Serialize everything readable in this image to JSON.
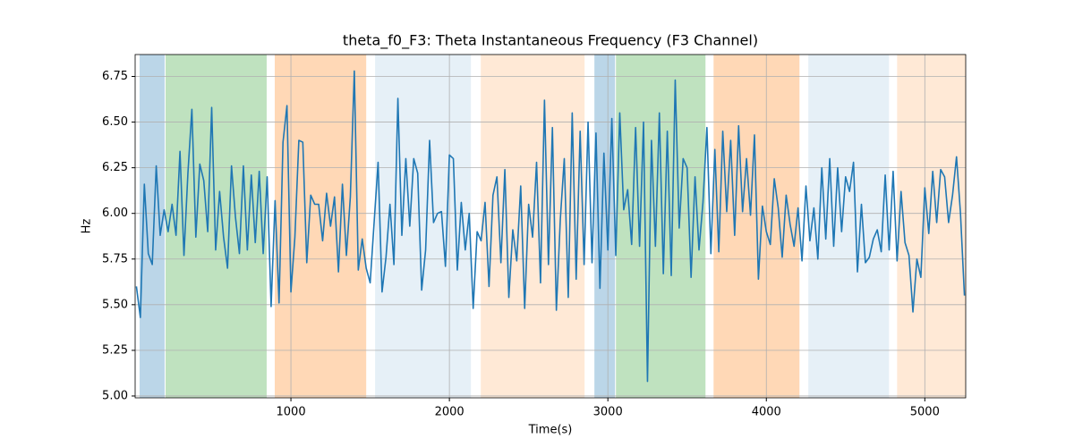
{
  "chart_data": {
    "type": "line",
    "title": "theta_f0_F3: Theta Instantaneous Frequency (F3 Channel)",
    "x_label": "Time(s)",
    "y_label": "Hz",
    "color": "#1f77b4",
    "grid": true,
    "xlim": [
      17,
      5258
    ],
    "ylim": [
      4.99,
      6.87
    ],
    "xticks": [
      1000,
      2000,
      3000,
      4000,
      5000
    ],
    "yticks": [
      {
        "value": 5,
        "label": "5.00"
      },
      5.25,
      {
        "value": 5.5,
        "label": "5.50"
      },
      5.75,
      {
        "value": 6,
        "label": "6.00"
      },
      6.25,
      {
        "value": 6.5,
        "label": "6.50"
      },
      6.75
    ],
    "spans": [
      {
        "start": 45,
        "end": 203,
        "color": "#1f77b4",
        "opacity": 0.3
      },
      {
        "start": 209,
        "end": 847,
        "color": "#2ca02c",
        "opacity": 0.3
      },
      {
        "start": 898,
        "end": 1475,
        "color": "#ff7f0e",
        "opacity": 0.3
      },
      {
        "start": 1531,
        "end": 2136,
        "color": "#1f77b4",
        "opacity": 0.11
      },
      {
        "start": 2198,
        "end": 2853,
        "color": "#ff7f0e",
        "opacity": 0.17
      },
      {
        "start": 2915,
        "end": 3045,
        "color": "#1f77b4",
        "opacity": 0.3
      },
      {
        "start": 3051,
        "end": 3616,
        "color": "#2ca02c",
        "opacity": 0.3
      },
      {
        "start": 3667,
        "end": 4209,
        "color": "#ff7f0e",
        "opacity": 0.3
      },
      {
        "start": 4265,
        "end": 4774,
        "color": "#1f77b4",
        "opacity": 0.11
      },
      {
        "start": 4825,
        "end": 5258,
        "color": "#ff7f0e",
        "opacity": 0.17
      }
    ],
    "x": [
      25,
      50,
      75,
      100,
      125,
      150,
      175,
      200,
      225,
      250,
      275,
      300,
      325,
      350,
      375,
      400,
      425,
      450,
      475,
      500,
      525,
      550,
      575,
      600,
      625,
      650,
      675,
      700,
      725,
      750,
      775,
      800,
      825,
      850,
      875,
      900,
      925,
      950,
      975,
      1000,
      1025,
      1050,
      1075,
      1100,
      1125,
      1150,
      1175,
      1200,
      1225,
      1250,
      1275,
      1300,
      1325,
      1350,
      1375,
      1400,
      1425,
      1450,
      1475,
      1500,
      1525,
      1550,
      1575,
      1600,
      1625,
      1650,
      1675,
      1700,
      1725,
      1750,
      1775,
      1800,
      1825,
      1850,
      1875,
      1900,
      1925,
      1950,
      1975,
      2000,
      2025,
      2050,
      2075,
      2100,
      2125,
      2150,
      2175,
      2200,
      2225,
      2250,
      2275,
      2300,
      2325,
      2350,
      2375,
      2400,
      2425,
      2450,
      2475,
      2500,
      2525,
      2550,
      2575,
      2600,
      2625,
      2650,
      2675,
      2700,
      2725,
      2750,
      2775,
      2800,
      2825,
      2850,
      2875,
      2900,
      2925,
      2950,
      2975,
      3000,
      3025,
      3050,
      3075,
      3100,
      3125,
      3150,
      3175,
      3200,
      3225,
      3250,
      3275,
      3300,
      3325,
      3350,
      3375,
      3400,
      3425,
      3450,
      3475,
      3500,
      3525,
      3550,
      3575,
      3600,
      3625,
      3650,
      3675,
      3700,
      3725,
      3750,
      3775,
      3800,
      3825,
      3850,
      3875,
      3900,
      3925,
      3950,
      3975,
      4000,
      4025,
      4050,
      4075,
      4100,
      4125,
      4150,
      4175,
      4200,
      4225,
      4250,
      4275,
      4300,
      4325,
      4350,
      4375,
      4400,
      4425,
      4450,
      4475,
      4500,
      4525,
      4550,
      4575,
      4600,
      4625,
      4650,
      4675,
      4700,
      4725,
      4750,
      4775,
      4800,
      4825,
      4850,
      4875,
      4900,
      4925,
      4950,
      4975,
      5000,
      5025,
      5050,
      5075,
      5100,
      5125,
      5150,
      5175,
      5200,
      5225,
      5250
    ],
    "values": [
      5.6,
      5.43,
      6.16,
      5.78,
      5.72,
      6.26,
      5.88,
      6.02,
      5.9,
      6.05,
      5.88,
      6.34,
      5.77,
      6.22,
      6.57,
      5.87,
      6.27,
      6.18,
      5.9,
      6.58,
      5.8,
      6.12,
      5.87,
      5.7,
      6.26,
      5.98,
      5.78,
      6.26,
      5.8,
      6.21,
      5.84,
      6.23,
      5.78,
      6.2,
      5.49,
      6.07,
      5.51,
      6.39,
      6.59,
      5.57,
      5.87,
      6.4,
      6.39,
      5.73,
      6.1,
      6.05,
      6.05,
      5.85,
      6.11,
      5.93,
      6.09,
      5.68,
      6.16,
      5.77,
      6.09,
      6.78,
      5.69,
      5.86,
      5.7,
      5.62,
      5.95,
      6.28,
      5.57,
      5.76,
      6.05,
      5.72,
      6.63,
      5.88,
      6.3,
      5.93,
      6.3,
      6.22,
      5.58,
      5.8,
      6.4,
      5.95,
      6.0,
      6.01,
      5.71,
      6.32,
      6.3,
      5.69,
      6.06,
      5.8,
      6.0,
      5.48,
      5.9,
      5.85,
      6.06,
      5.6,
      6.1,
      6.2,
      5.73,
      6.24,
      5.54,
      5.91,
      5.74,
      6.15,
      5.48,
      6.05,
      5.87,
      6.28,
      5.62,
      6.62,
      5.72,
      6.47,
      5.47,
      5.97,
      6.3,
      5.54,
      6.55,
      5.64,
      6.45,
      5.72,
      6.5,
      5.73,
      6.44,
      5.59,
      6.33,
      5.8,
      6.52,
      5.77,
      6.55,
      6.02,
      6.13,
      5.83,
      6.47,
      5.82,
      6.5,
      5.08,
      6.4,
      5.82,
      6.55,
      5.67,
      6.45,
      5.66,
      6.73,
      5.92,
      6.3,
      6.25,
      5.65,
      6.2,
      5.8,
      6.06,
      6.47,
      5.78,
      6.35,
      5.79,
      6.45,
      6.01,
      6.4,
      5.88,
      6.48,
      6.01,
      6.3,
      5.99,
      6.43,
      5.64,
      6.04,
      5.9,
      5.83,
      6.19,
      6.03,
      5.76,
      6.1,
      5.94,
      5.82,
      6.03,
      5.74,
      6.15,
      5.85,
      6.03,
      5.75,
      6.25,
      5.86,
      6.3,
      5.82,
      6.25,
      5.9,
      6.2,
      6.12,
      6.28,
      5.68,
      6.05,
      5.73,
      5.76,
      5.86,
      5.91,
      5.79,
      6.21,
      5.8,
      6.23,
      5.74,
      6.12,
      5.84,
      5.77,
      5.46,
      5.75,
      5.65,
      6.14,
      5.89,
      6.23,
      5.95,
      6.24,
      6.2,
      5.95,
      6.1,
      6.31,
      6.0,
      5.55
    ]
  }
}
